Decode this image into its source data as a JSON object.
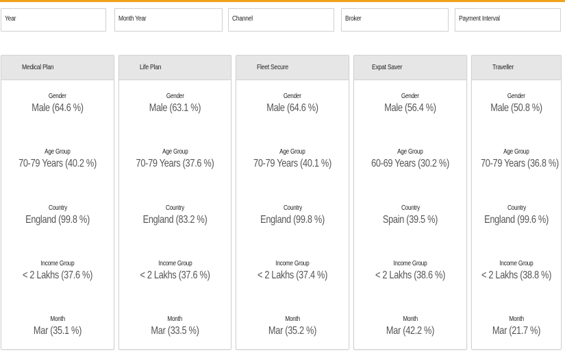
{
  "theme": {
    "accent": "#f2a21b",
    "header_bg": "#e6e6e6",
    "value_color": "#555555"
  },
  "filters": [
    {
      "label": "Year"
    },
    {
      "label": "Month Year"
    },
    {
      "label": "Channel"
    },
    {
      "label": "Broker"
    },
    {
      "label": "Payment Interval"
    }
  ],
  "cards": [
    {
      "title": "Medical Plan",
      "stats": [
        {
          "label": "Gender",
          "value": "Male (64.6 %)"
        },
        {
          "label": "Age Group",
          "value": "70-79 Years (40.2 %)"
        },
        {
          "label": "Country",
          "value": "England (99.8 %)"
        },
        {
          "label": "Income Group",
          "value": "< 2 Lakhs (37.6 %)"
        },
        {
          "label": "Month",
          "value": "Mar (35.1 %)"
        }
      ]
    },
    {
      "title": "Life Plan",
      "stats": [
        {
          "label": "Gender",
          "value": "Male (63.1 %)"
        },
        {
          "label": "Age Group",
          "value": "70-79 Years (37.6 %)"
        },
        {
          "label": "Country",
          "value": "England (83.2 %)"
        },
        {
          "label": "Income Group",
          "value": "< 2 Lakhs (37.6 %)"
        },
        {
          "label": "Month",
          "value": "Mar (33.5 %)"
        }
      ]
    },
    {
      "title": "Fleet Secure",
      "stats": [
        {
          "label": "Gender",
          "value": "Male (64.6 %)"
        },
        {
          "label": "Age Group",
          "value": "70-79 Years (40.1 %)"
        },
        {
          "label": "Country",
          "value": "England (99.8 %)"
        },
        {
          "label": "Income Group",
          "value": "< 2 Lakhs (37.4 %)"
        },
        {
          "label": "Month",
          "value": "Mar (35.2 %)"
        }
      ]
    },
    {
      "title": "Expat Saver",
      "stats": [
        {
          "label": "Gender",
          "value": "Male (56.4 %)"
        },
        {
          "label": "Age Group",
          "value": "60-69 Years (30.2 %)"
        },
        {
          "label": "Country",
          "value": "Spain (39.5 %)"
        },
        {
          "label": "Income Group",
          "value": "< 2 Lakhs (38.6 %)"
        },
        {
          "label": "Month",
          "value": "Mar (42.2 %)"
        }
      ]
    },
    {
      "title": "Traveller",
      "stats": [
        {
          "label": "Gender",
          "value": "Male (50.8 %)"
        },
        {
          "label": "Age Group",
          "value": "70-79 Years (36.8 %)"
        },
        {
          "label": "Country",
          "value": "England (99.6 %)"
        },
        {
          "label": "Income Group",
          "value": "< 2 Lakhs (38.8 %)"
        },
        {
          "label": "Month",
          "value": "Mar (21.7 %)"
        }
      ]
    }
  ]
}
